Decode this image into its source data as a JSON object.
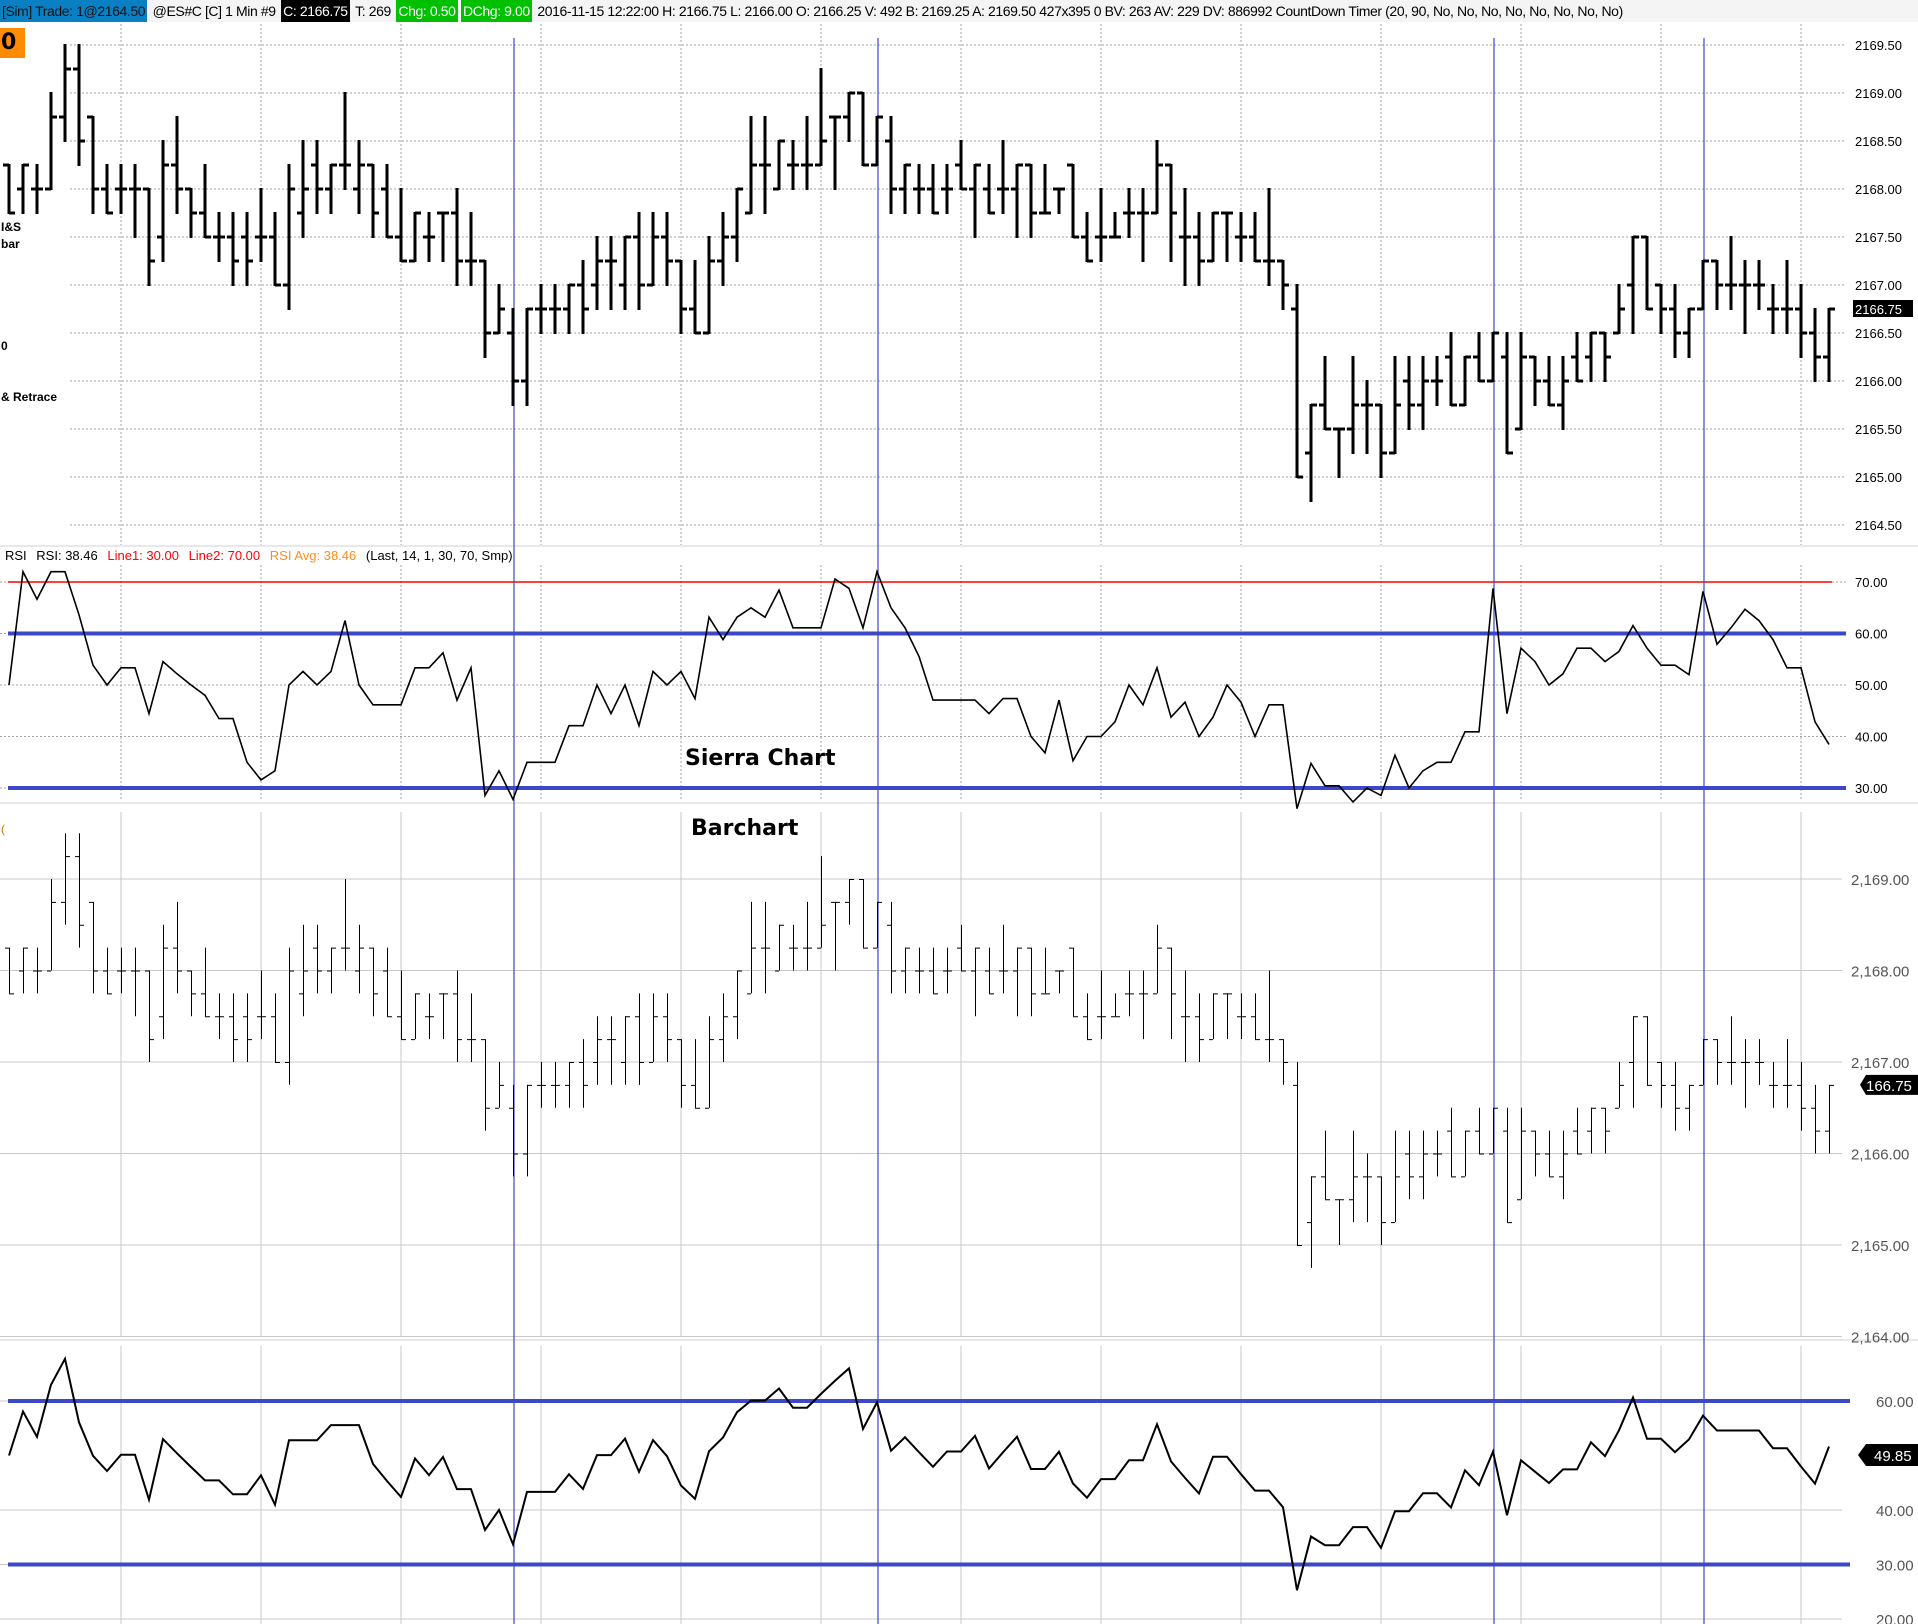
{
  "header": {
    "sim_trade": "[Sim]  Trade: 1@2164.50",
    "symbol": "@ES#C [C]  1 Min   #9",
    "close": "C: 2166.75",
    "ticks": "T: 269",
    "chg": "Chg: 0.50",
    "dchg": "DChg: 9.00",
    "details": "2016-11-15 12:22:00 H: 2166.75 L: 2166.00 O: 2166.25 V: 492 B: 2169.25 A: 2169.50 427x395 0 BV: 263 AV: 229 DV: 886992 CountDown Timer   (20, 90, No, No, No, No, No, No, No, No)"
  },
  "left_labels": {
    "badge": "0",
    "l1": "I&S",
    "l2": "bar",
    "l3": "0",
    "l4": "& Retrace",
    "l5": "("
  },
  "rsi_header": {
    "name": "RSI",
    "rsi": "RSI: 38.46",
    "line1": "Line1: 30.00",
    "line2": "Line2: 70.00",
    "avg": "RSI Avg: 38.46",
    "params": "(Last, 14, 1, 30, 70, Smp)"
  },
  "annotations": {
    "sierra": "Sierra Chart",
    "barchart": "Barchart"
  },
  "colors": {
    "blue_line": "#3d48c8",
    "red_line": "#ff0000",
    "rsi_red_text": "#ff0000",
    "rsi_orange_text": "#ff8c1a",
    "grid": "#a0a0a0",
    "badge": "#ff8c00",
    "sim_bg": "#0a80c4",
    "green_bg": "#00c000"
  },
  "chart_data": [
    {
      "type": "ohlc",
      "title": "",
      "interval": "1 Min",
      "ylim": [
        2164.5,
        2169.5
      ],
      "y_ticks": [
        "2169.50",
        "2169.00",
        "2168.50",
        "2168.00",
        "2167.50",
        "2167.00",
        "2166.50",
        "2166.00",
        "2165.50",
        "2165.00",
        "2164.50"
      ],
      "last_price_label": "2166.75",
      "grid": true,
      "bars_ohlc": [
        [
          2168.25,
          2168.25,
          2167.75,
          2167.75
        ],
        [
          2168,
          2168.25,
          2167.75,
          2168.25
        ],
        [
          2168,
          2168.25,
          2167.75,
          2168
        ],
        [
          2168,
          2169,
          2168,
          2168.75
        ],
        [
          2168.75,
          2169.5,
          2168.5,
          2169.25
        ],
        [
          2169.25,
          2169.5,
          2168.25,
          2168.5
        ],
        [
          2168.75,
          2168.75,
          2167.75,
          2168
        ],
        [
          2168,
          2168.25,
          2167.75,
          2167.75
        ],
        [
          2168,
          2168.25,
          2167.75,
          2168
        ],
        [
          2168,
          2168.25,
          2167.5,
          2168
        ],
        [
          2168,
          2168,
          2167,
          2167.25
        ],
        [
          2167.5,
          2168.5,
          2167.25,
          2168.25
        ],
        [
          2168.25,
          2168.75,
          2167.75,
          2168
        ],
        [
          2168,
          2168,
          2167.5,
          2167.75
        ],
        [
          2167.75,
          2168.25,
          2167.5,
          2167.5
        ],
        [
          2167.5,
          2167.75,
          2167.25,
          2167.5
        ],
        [
          2167.5,
          2167.75,
          2167,
          2167.25
        ],
        [
          2167.5,
          2167.75,
          2167,
          2167.25
        ],
        [
          2167.5,
          2168,
          2167.25,
          2167.5
        ],
        [
          2167.5,
          2167.75,
          2167,
          2167
        ],
        [
          2167,
          2168.25,
          2166.75,
          2168
        ],
        [
          2167.75,
          2168.5,
          2167.5,
          2168
        ],
        [
          2168.25,
          2168.5,
          2167.75,
          2168
        ],
        [
          2168,
          2168.25,
          2167.75,
          2168.25
        ],
        [
          2168.25,
          2169,
          2168,
          2168.25
        ],
        [
          2168,
          2168.5,
          2167.75,
          2168.25
        ],
        [
          2168.25,
          2168.25,
          2167.5,
          2167.75
        ],
        [
          2168,
          2168.25,
          2167.5,
          2167.5
        ],
        [
          2167.5,
          2168,
          2167.25,
          2167.25
        ],
        [
          2167.25,
          2167.75,
          2167.25,
          2167.75
        ],
        [
          2167.5,
          2167.75,
          2167.25,
          2167.5
        ],
        [
          2167.75,
          2167.75,
          2167.25,
          2167.75
        ],
        [
          2167.75,
          2168,
          2167,
          2167.25
        ],
        [
          2167.25,
          2167.75,
          2167,
          2167.25
        ],
        [
          2167.25,
          2167.25,
          2166.25,
          2166.5
        ],
        [
          2166.5,
          2167,
          2166.5,
          2166.75
        ],
        [
          2166.5,
          2166.75,
          2165.75,
          2166
        ],
        [
          2166,
          2166.75,
          2165.75,
          2166.75
        ],
        [
          2166.75,
          2167,
          2166.5,
          2166.75
        ],
        [
          2166.75,
          2167,
          2166.5,
          2166.75
        ],
        [
          2166.75,
          2167,
          2166.5,
          2167
        ],
        [
          2167,
          2167.25,
          2166.5,
          2166.75
        ],
        [
          2167,
          2167.5,
          2166.75,
          2167.25
        ],
        [
          2167.25,
          2167.5,
          2166.75,
          2167.25
        ],
        [
          2167,
          2167.5,
          2166.75,
          2167.5
        ],
        [
          2167.5,
          2167.75,
          2166.75,
          2167
        ],
        [
          2167,
          2167.75,
          2167,
          2167.5
        ],
        [
          2167.5,
          2167.75,
          2167,
          2167.25
        ],
        [
          2167.25,
          2167.25,
          2166.5,
          2166.75
        ],
        [
          2166.75,
          2167.25,
          2166.5,
          2166.5
        ],
        [
          2166.5,
          2167.5,
          2166.5,
          2167.25
        ],
        [
          2167.25,
          2167.75,
          2167,
          2167.5
        ],
        [
          2167.5,
          2168,
          2167.25,
          2168
        ],
        [
          2167.75,
          2168.75,
          2167.75,
          2168.25
        ],
        [
          2168.25,
          2168.75,
          2167.75,
          2168.25
        ],
        [
          2168,
          2168.5,
          2168,
          2168.5
        ],
        [
          2168.25,
          2168.5,
          2168,
          2168.25
        ],
        [
          2168.25,
          2168.75,
          2168,
          2168.25
        ],
        [
          2168.25,
          2169.25,
          2168.25,
          2168.5
        ],
        [
          2168.75,
          2168.75,
          2168,
          2168.75
        ],
        [
          2168.75,
          2169,
          2168.5,
          2169
        ],
        [
          2169,
          2169,
          2168.25,
          2168.25
        ],
        [
          2168.25,
          2168.75,
          2168.25,
          2168.75
        ],
        [
          2168.5,
          2168.75,
          2167.75,
          2168
        ],
        [
          2168,
          2168.25,
          2167.75,
          2168.25
        ],
        [
          2168,
          2168.25,
          2167.75,
          2168
        ],
        [
          2168,
          2168.25,
          2167.75,
          2167.75
        ],
        [
          2168,
          2168.25,
          2167.75,
          2168
        ],
        [
          2168.25,
          2168.5,
          2168,
          2168
        ],
        [
          2168,
          2168.25,
          2167.5,
          2168.25
        ],
        [
          2168,
          2168.25,
          2167.75,
          2167.75
        ],
        [
          2168,
          2168.5,
          2167.75,
          2168
        ],
        [
          2168,
          2168.25,
          2167.5,
          2168.25
        ],
        [
          2168.25,
          2168.25,
          2167.5,
          2167.75
        ],
        [
          2167.75,
          2168.25,
          2167.75,
          2167.75
        ],
        [
          2168,
          2168,
          2167.75,
          2168
        ],
        [
          2168.25,
          2168.25,
          2167.5,
          2167.5
        ],
        [
          2167.5,
          2167.75,
          2167.25,
          2167.25
        ],
        [
          2167.5,
          2168,
          2167.25,
          2167.5
        ],
        [
          2167.5,
          2167.75,
          2167.5,
          2167.5
        ],
        [
          2167.75,
          2168,
          2167.5,
          2167.75
        ],
        [
          2167.75,
          2168,
          2167.25,
          2167.75
        ],
        [
          2167.75,
          2168.5,
          2167.75,
          2168.25
        ],
        [
          2168.25,
          2168.25,
          2167.25,
          2167.75
        ],
        [
          2167.5,
          2168,
          2167,
          2167.5
        ],
        [
          2167.5,
          2167.75,
          2167,
          2167.25
        ],
        [
          2167.25,
          2167.75,
          2167.25,
          2167.75
        ],
        [
          2167.75,
          2167.75,
          2167.25,
          2167.75
        ],
        [
          2167.5,
          2167.75,
          2167.25,
          2167.5
        ],
        [
          2167.5,
          2167.75,
          2167.25,
          2167.25
        ],
        [
          2167.25,
          2168,
          2167,
          2167.25
        ],
        [
          2167.25,
          2167.25,
          2166.75,
          2167
        ],
        [
          2166.75,
          2167,
          2165,
          2165
        ],
        [
          2165.25,
          2165.75,
          2164.75,
          2165.75
        ],
        [
          2165.75,
          2166.25,
          2165.5,
          2165.5
        ],
        [
          2165.5,
          2165.5,
          2165,
          2165.5
        ],
        [
          2165.5,
          2166.25,
          2165.25,
          2165.75
        ],
        [
          2165.75,
          2166,
          2165.25,
          2165.75
        ],
        [
          2165.75,
          2165.75,
          2165,
          2165.25
        ],
        [
          2165.25,
          2166.25,
          2165.25,
          2165.75
        ],
        [
          2166,
          2166.25,
          2165.5,
          2165.75
        ],
        [
          2165.75,
          2166.25,
          2165.5,
          2166
        ],
        [
          2166,
          2166.25,
          2165.75,
          2166
        ],
        [
          2166.25,
          2166.5,
          2165.75,
          2165.75
        ],
        [
          2165.75,
          2166.25,
          2165.75,
          2166.25
        ],
        [
          2166.25,
          2166.5,
          2166,
          2166
        ],
        [
          2166,
          2166.5,
          2166,
          2166.5
        ],
        [
          2166.25,
          2166.5,
          2165.25,
          2165.25
        ],
        [
          2165.5,
          2166.5,
          2165.5,
          2166.25
        ],
        [
          2166.25,
          2166.25,
          2165.75,
          2166
        ],
        [
          2166,
          2166.25,
          2165.75,
          2165.75
        ],
        [
          2165.75,
          2166.25,
          2165.5,
          2166
        ],
        [
          2166.25,
          2166.5,
          2166,
          2166
        ],
        [
          2166.25,
          2166.5,
          2166,
          2166.5
        ],
        [
          2166.5,
          2166.5,
          2166,
          2166.25
        ],
        [
          2166.5,
          2167,
          2166.5,
          2166.75
        ],
        [
          2167,
          2167.5,
          2166.5,
          2167.5
        ],
        [
          2167.5,
          2167.5,
          2166.75,
          2166.75
        ],
        [
          2167,
          2167,
          2166.5,
          2166.75
        ],
        [
          2166.75,
          2167,
          2166.25,
          2166.5
        ],
        [
          2166.5,
          2166.75,
          2166.25,
          2166.75
        ],
        [
          2166.75,
          2167.25,
          2166.75,
          2167.25
        ],
        [
          2167.25,
          2167.25,
          2166.75,
          2167
        ],
        [
          2167,
          2167.5,
          2166.75,
          2167
        ],
        [
          2167,
          2167.25,
          2166.5,
          2167
        ],
        [
          2167,
          2167.25,
          2166.75,
          2167
        ],
        [
          2166.75,
          2167,
          2166.5,
          2166.75
        ],
        [
          2166.75,
          2167.25,
          2166.5,
          2166.75
        ],
        [
          2166.75,
          2167,
          2166.25,
          2166.5
        ],
        [
          2166.5,
          2166.75,
          2166,
          2166.25
        ],
        [
          2166.25,
          2166.75,
          2166,
          2166.75
        ]
      ],
      "vertical_markers_bar_index": [
        36,
        62,
        106,
        121
      ]
    },
    {
      "type": "line",
      "title": "RSI",
      "rsi_length": 14,
      "smoothing": "Smp",
      "ylim": [
        27,
        72
      ],
      "y_ticks": [
        "70.00",
        "60.00",
        "50.00",
        "40.00",
        "30.00"
      ],
      "reference_lines": [
        {
          "value": 70,
          "color": "#ff0000"
        },
        {
          "value": 60,
          "color": "#3d48c8"
        },
        {
          "value": 30,
          "color": "#3d48c8"
        }
      ],
      "last_value": "38.46"
    },
    {
      "type": "ohlc",
      "title": "",
      "ylim": [
        2163.8,
        2169.8
      ],
      "y_ticks": [
        "2,169.00",
        "2,168.00",
        "2,167.00",
        "2,166.00",
        "2,165.00",
        "2,164.00"
      ],
      "last_price_label": "166.75",
      "grid": true
    },
    {
      "type": "line",
      "title": "",
      "rsi_length": 14,
      "ylim": [
        20,
        70
      ],
      "y_ticks": [
        "60.00",
        "40.00",
        "30.00",
        "20.00"
      ],
      "reference_lines": [
        {
          "value": 60,
          "color": "#3d48c8"
        },
        {
          "value": 30,
          "color": "#3d48c8"
        }
      ],
      "last_value_label": "49.85"
    }
  ]
}
